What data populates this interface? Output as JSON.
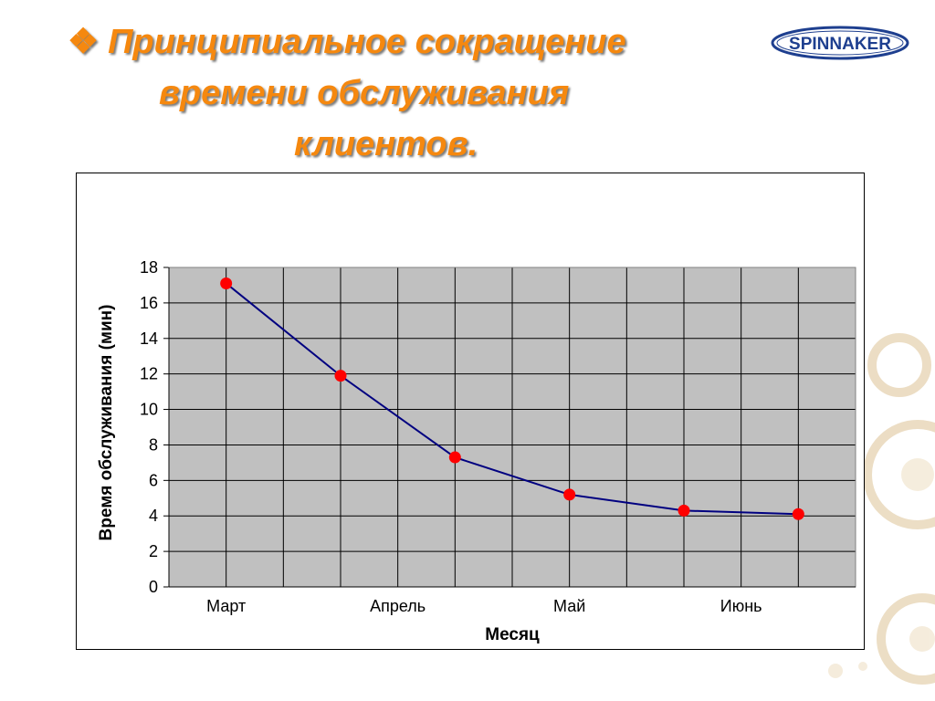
{
  "title": {
    "bullet": "❖",
    "line1": "Принципиальное сокращение",
    "line2": "времени обслуживания",
    "line3": "клиентов."
  },
  "logo": {
    "text": "SPINNAKER"
  },
  "colors": {
    "title": "#f5880f",
    "plot_background": "#c0c0c0",
    "line": "#000080",
    "marker": "#ff0000"
  },
  "chart_data": {
    "type": "line",
    "title": "",
    "xlabel": "Месяц",
    "ylabel": "Время обслуживания (мин)",
    "ylim": [
      0,
      18
    ],
    "ytick_step": 2,
    "yticks": [
      "0",
      "2",
      "4",
      "6",
      "8",
      "10",
      "12",
      "14",
      "16",
      "18"
    ],
    "x_slots": 12,
    "xtick_labels": [
      {
        "slot": 1,
        "label": "Март"
      },
      {
        "slot": 4,
        "label": "Апрель"
      },
      {
        "slot": 7,
        "label": "Май"
      },
      {
        "slot": 10,
        "label": "Июнь"
      }
    ],
    "grid": true,
    "legend": "none",
    "points": [
      {
        "slot": 1,
        "y": 17.1
      },
      {
        "slot": 3,
        "y": 11.9
      },
      {
        "slot": 5,
        "y": 7.3
      },
      {
        "slot": 7,
        "y": 5.2
      },
      {
        "slot": 9,
        "y": 4.3
      },
      {
        "slot": 11,
        "y": 4.1
      }
    ]
  }
}
